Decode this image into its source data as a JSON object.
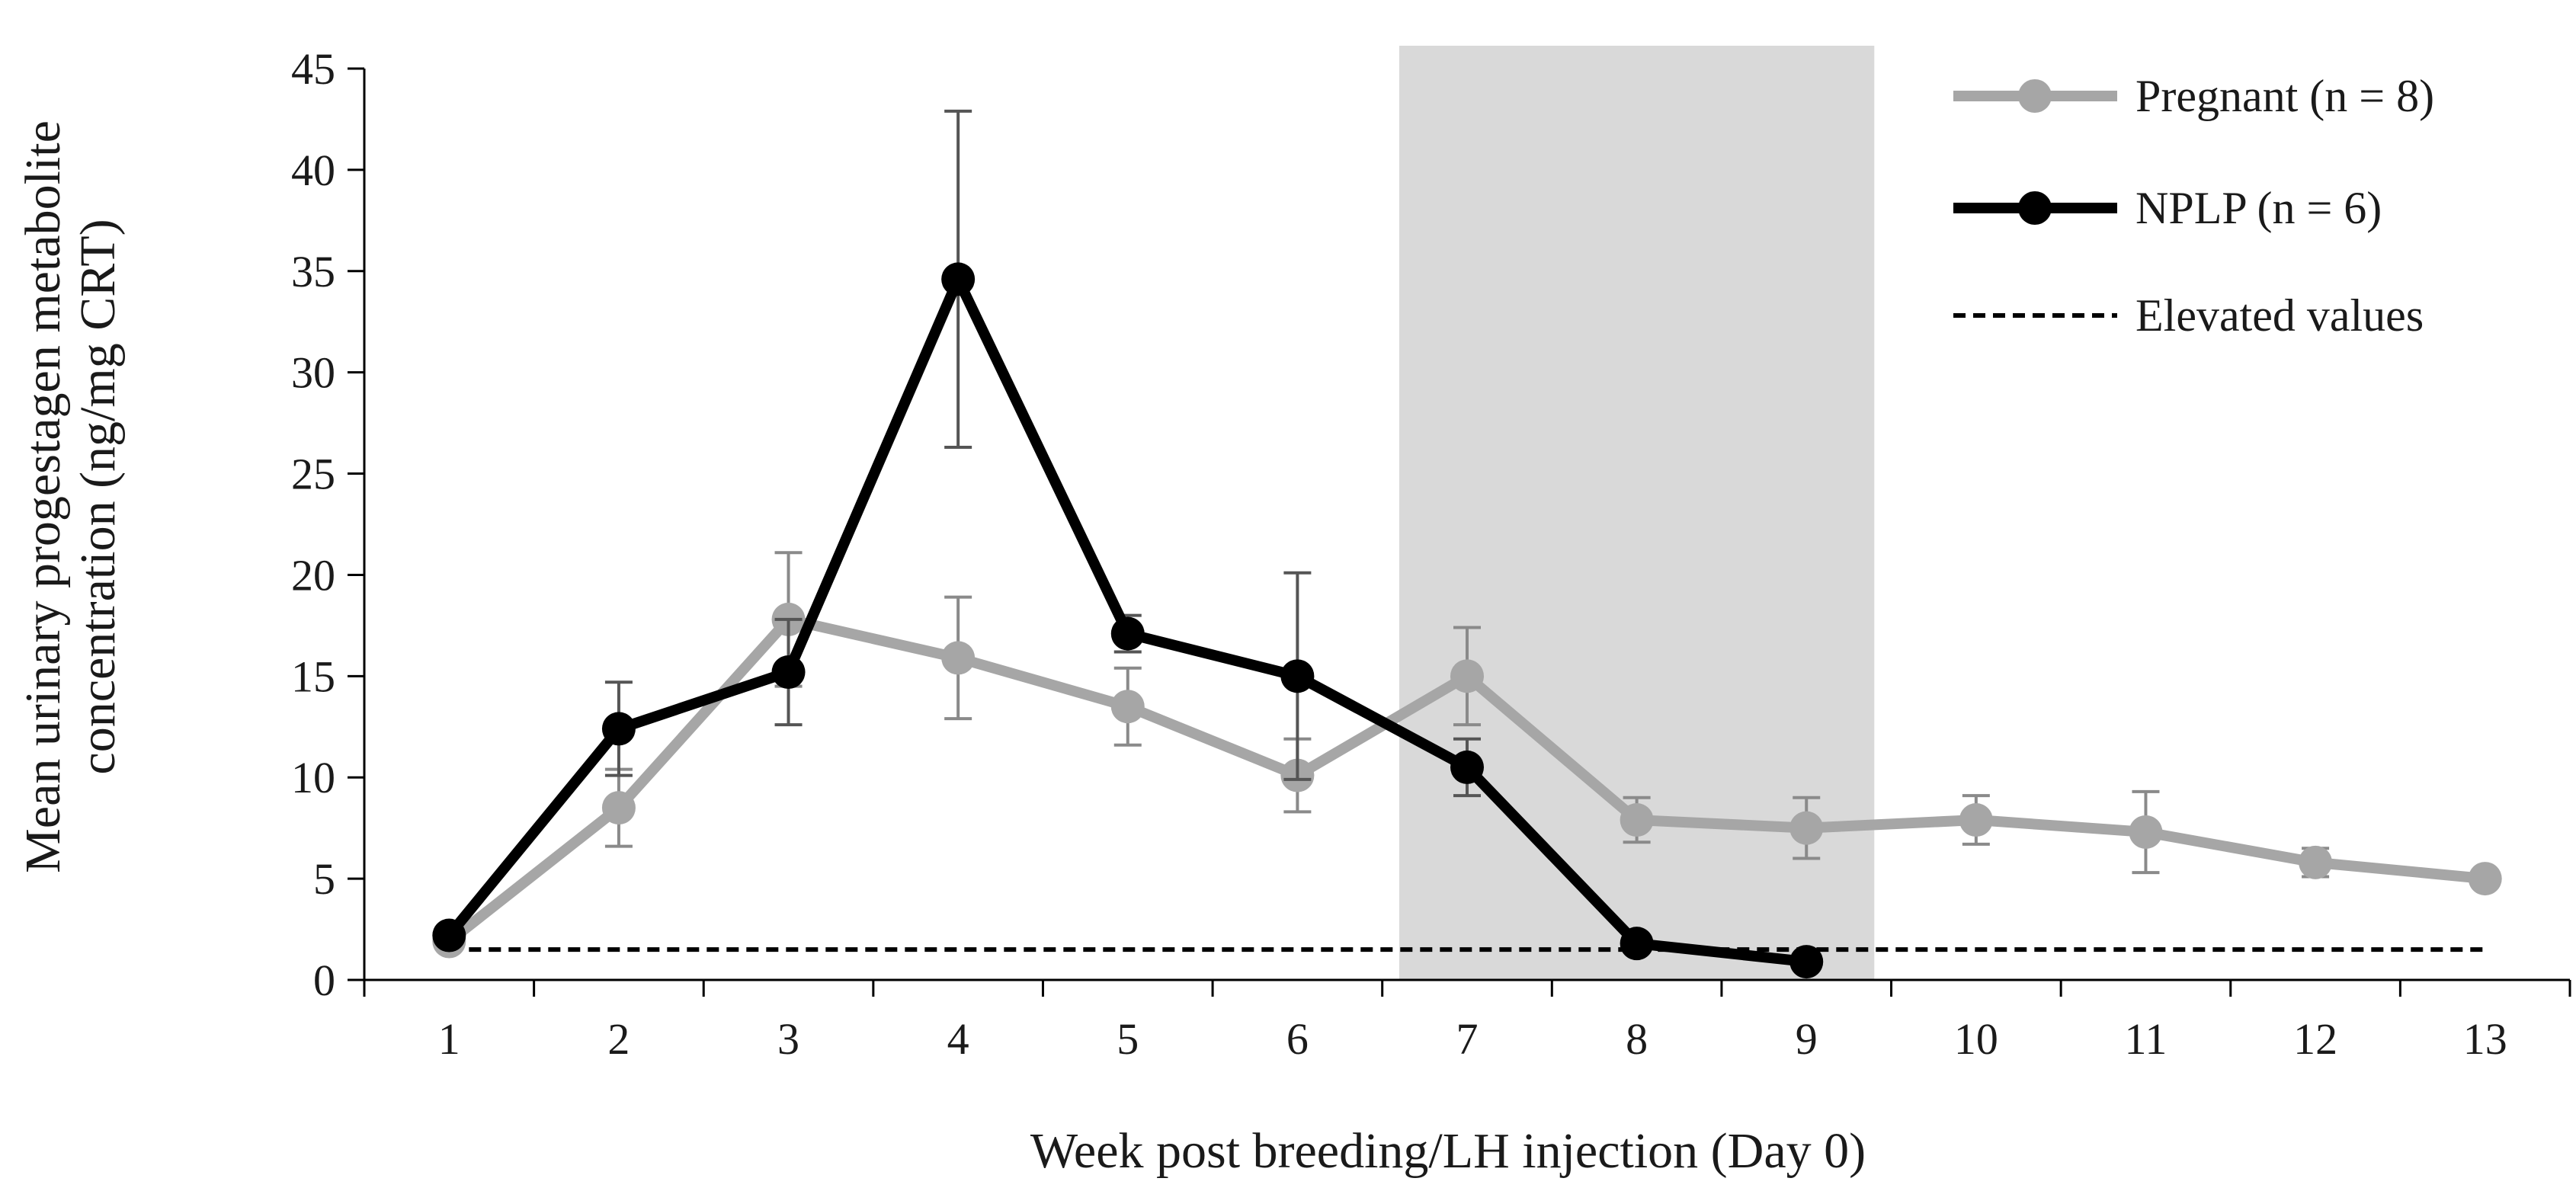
{
  "chart_data": {
    "type": "line",
    "title": "",
    "xlabel": "Week post breeding/LH injection (Day 0)",
    "ylabel_line1": "Mean urinary progestagen metabolite",
    "ylabel_line2": "concentration (ng/mg CRT)",
    "x": [
      1,
      2,
      3,
      4,
      5,
      6,
      7,
      8,
      9,
      10,
      11,
      12,
      13
    ],
    "x_tick_labels": [
      "1",
      "2",
      "3",
      "4",
      "5",
      "6",
      "7",
      "8",
      "9",
      "10",
      "11",
      "12",
      "13"
    ],
    "ylim": [
      0,
      45
    ],
    "y_ticks": [
      0,
      5,
      10,
      15,
      20,
      25,
      30,
      35,
      40,
      45
    ],
    "y_tick_labels": [
      "0",
      "5",
      "10",
      "15",
      "20",
      "25",
      "30",
      "35",
      "40",
      "45"
    ],
    "shaded_region": {
      "x_start": 6.6,
      "x_end": 9.4,
      "color": "#d9d9d9"
    },
    "series": [
      {
        "name": "Pregnant (n = 8)",
        "color": "#a6a6a6",
        "x": [
          1,
          2,
          3,
          4,
          5,
          6,
          7,
          8,
          9,
          10,
          11,
          12,
          13
        ],
        "values": [
          1.9,
          8.5,
          17.8,
          15.9,
          13.5,
          10.1,
          15.0,
          7.9,
          7.5,
          7.9,
          7.3,
          5.8,
          5.0
        ],
        "error": [
          0.3,
          1.9,
          3.3,
          3.0,
          1.9,
          1.8,
          2.4,
          1.1,
          1.5,
          1.2,
          2.0,
          0.7,
          0.3
        ]
      },
      {
        "name": "NPLP (n = 6)",
        "color": "#000000",
        "x": [
          1,
          2,
          3,
          4,
          5,
          6,
          7,
          8,
          9
        ],
        "values": [
          2.2,
          12.4,
          15.2,
          34.6,
          17.1,
          15.0,
          10.5,
          1.8,
          0.9
        ],
        "error": [
          0.3,
          2.3,
          2.6,
          8.3,
          0.9,
          5.1,
          1.4,
          0.2,
          0.1
        ]
      }
    ],
    "reference_line": {
      "name": "Elevated values",
      "y": 1.5,
      "x_start": 1,
      "x_end": 13,
      "color": "#000000",
      "style": "dashed"
    },
    "legend_position": "top-right"
  }
}
